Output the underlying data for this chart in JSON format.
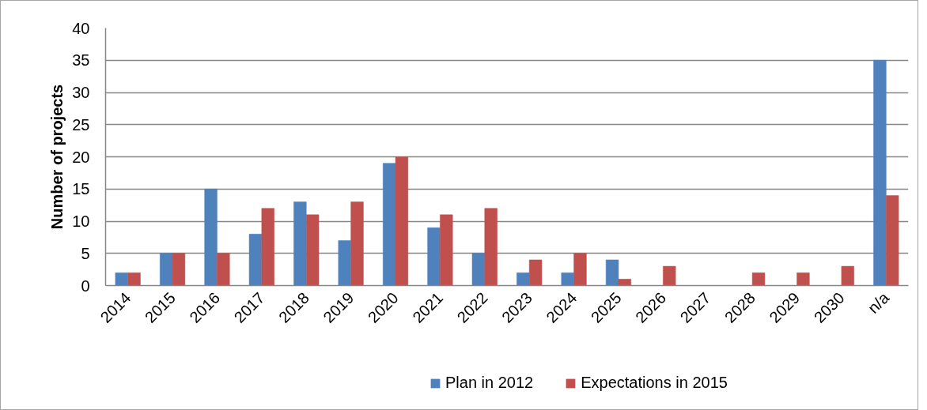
{
  "chart_data": {
    "type": "bar",
    "ylabel": "Number of projects",
    "categories": [
      "2014",
      "2015",
      "2016",
      "2017",
      "2018",
      "2019",
      "2020",
      "2021",
      "2022",
      "2023",
      "2024",
      "2025",
      "2026",
      "2027",
      "2028",
      "2029",
      "2030",
      "n/a"
    ],
    "series": [
      {
        "name": "Plan in 2012",
        "color": "#4f81bd",
        "values": [
          2,
          5,
          15,
          8,
          13,
          7,
          19,
          9,
          5,
          2,
          2,
          4,
          0,
          0,
          0,
          0,
          0,
          35
        ]
      },
      {
        "name": "Expectations in 2015",
        "color": "#c0504d",
        "values": [
          2,
          5,
          5,
          12,
          11,
          13,
          20,
          11,
          12,
          4,
          5,
          1,
          3,
          0,
          2,
          2,
          3,
          14
        ]
      }
    ],
    "ylim": [
      0,
      40
    ],
    "yticks": [
      0,
      5,
      10,
      15,
      20,
      25,
      30,
      35,
      40
    ],
    "grid": "y",
    "legend": "bottom"
  }
}
